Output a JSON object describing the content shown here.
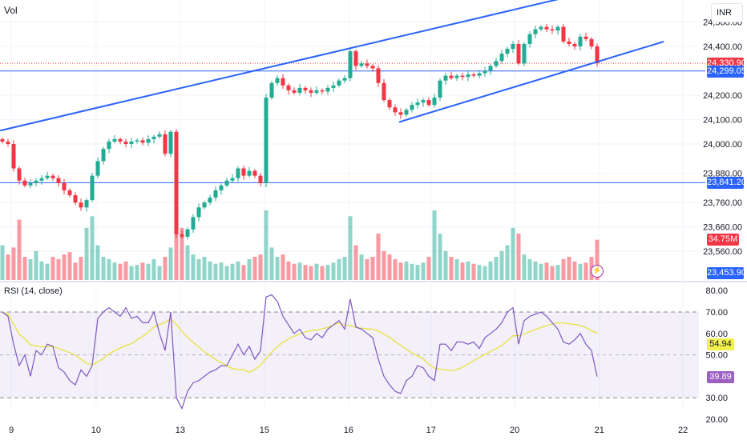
{
  "header": {
    "volume_label": "Vol",
    "currency_button": "INR",
    "rsi_title": "RSI (14, close)"
  },
  "colors": {
    "up": "#22ab94",
    "down": "#f23645",
    "line_blue": "#2962ff",
    "rsi": "#7e57c2",
    "rsi_ma": "#e6e33c"
  },
  "chart_data": {
    "type": "candlestick",
    "price_axis": {
      "range": [
        23440,
        24600
      ],
      "ticks": [
        "24,500.00",
        "24,400.00",
        "24,200.00",
        "24,100.00",
        "24,000.00",
        "23,880.00",
        "23,760.00",
        "23,660.00",
        "23,560.00"
      ],
      "tick_values": [
        24500,
        24400,
        24200,
        24100,
        24000,
        23880,
        23760,
        23660,
        23560
      ]
    },
    "x_axis": {
      "labels": [
        "9",
        "10",
        "13",
        "15",
        "16",
        "17",
        "20",
        "21",
        "22"
      ],
      "label_candle_index": [
        1.6,
        16.7,
        31.7,
        46.7,
        61.7,
        76.4,
        91.3,
        106.4,
        121.3
      ]
    },
    "closes": [
      24010,
      24000,
      23900,
      23850,
      23830,
      23840,
      23850,
      23860,
      23870,
      23860,
      23840,
      23810,
      23790,
      23760,
      23740,
      23770,
      23870,
      23930,
      23980,
      24010,
      24020,
      24010,
      24000,
      24010,
      24015,
      24005,
      24020,
      24030,
      24040,
      23960,
      24050,
      23630,
      23620,
      23650,
      23700,
      23740,
      23760,
      23780,
      23810,
      23830,
      23850,
      23860,
      23900,
      23870,
      23890,
      23870,
      23840,
      24190,
      24250,
      24270,
      24240,
      24220,
      24210,
      24230,
      24220,
      24210,
      24220,
      24215,
      24230,
      24240,
      24260,
      24270,
      24380,
      24320,
      24330,
      24320,
      24310,
      24250,
      24180,
      24150,
      24130,
      24120,
      24140,
      24160,
      24170,
      24180,
      24160,
      24190,
      24260,
      24280,
      24270,
      24280,
      24275,
      24285,
      24280,
      24290,
      24300,
      24320,
      24340,
      24370,
      24390,
      24410,
      24330,
      24410,
      24450,
      24470,
      24480,
      24470,
      24465,
      24480,
      24420,
      24410,
      24400,
      24440,
      24430,
      24400,
      24330.9
    ],
    "volumes_m": [
      30,
      22,
      28,
      52,
      20,
      18,
      25,
      16,
      14,
      20,
      18,
      22,
      24,
      15,
      20,
      45,
      55,
      30,
      20,
      18,
      15,
      14,
      16,
      12,
      13,
      15,
      14,
      18,
      12,
      20,
      28,
      50,
      45,
      30,
      22,
      18,
      20,
      16,
      14,
      15,
      12,
      14,
      16,
      13,
      18,
      20,
      22,
      60,
      28,
      20,
      22,
      16,
      14,
      15,
      13,
      12,
      14,
      12,
      13,
      15,
      18,
      20,
      55,
      30,
      22,
      18,
      20,
      40,
      25,
      22,
      18,
      15,
      16,
      14,
      13,
      15,
      20,
      60,
      40,
      25,
      20,
      18,
      15,
      16,
      14,
      13,
      12,
      16,
      20,
      25,
      30,
      45,
      40,
      22,
      18,
      16,
      14,
      15,
      12,
      13,
      18,
      20,
      16,
      14,
      15,
      20,
      34.75
    ],
    "rsi": [
      70,
      68,
      55,
      45,
      50,
      40,
      52,
      50,
      55,
      54,
      44,
      42,
      38,
      36,
      43,
      40,
      45,
      67,
      70,
      72,
      70,
      68,
      72,
      67,
      68,
      65,
      65,
      70,
      60,
      52,
      70,
      30,
      25,
      33,
      37,
      38,
      40,
      42,
      43,
      45,
      45,
      50,
      55,
      50,
      54,
      48,
      52,
      77,
      78,
      75,
      68,
      64,
      60,
      62,
      58,
      57,
      60,
      58,
      62,
      64,
      66,
      62,
      76,
      63,
      62,
      60,
      58,
      48,
      40,
      36,
      33,
      32,
      38,
      40,
      45,
      44,
      40,
      38,
      55,
      55,
      52,
      56,
      56,
      55,
      56,
      53,
      58,
      60,
      62,
      65,
      70,
      72,
      55,
      66,
      68,
      69,
      70,
      68,
      65,
      62,
      56,
      55,
      57,
      60,
      55,
      52,
      39.89
    ],
    "rsi_axis": {
      "range": [
        17,
        83
      ],
      "ticks": [
        "80.00",
        "70.00",
        "60.00",
        "50.00",
        "30.00",
        "20.00"
      ],
      "tick_values": [
        80,
        70,
        60,
        50,
        30,
        20
      ],
      "bands": [
        30,
        50,
        70
      ]
    },
    "drawings": [
      {
        "name": "upper-trendline",
        "from": [
          -0.4,
          24055
        ],
        "to": [
          100.3,
          24600
        ]
      },
      {
        "name": "lower-trendline",
        "from": [
          70.7,
          24090
        ],
        "to": [
          117.9,
          24420
        ]
      }
    ],
    "levels": {
      "last_price": "24,330.90",
      "last_price_value": 24330.9,
      "level_high": "24,299.05",
      "level_high_value": 24299.05,
      "level_low": "23,841.20",
      "level_low_value": 23841.2,
      "volume": "34.75M",
      "scale_low": "23,453.90",
      "rsi_ma_value": "54.94",
      "rsi_value": "39.89"
    }
  }
}
